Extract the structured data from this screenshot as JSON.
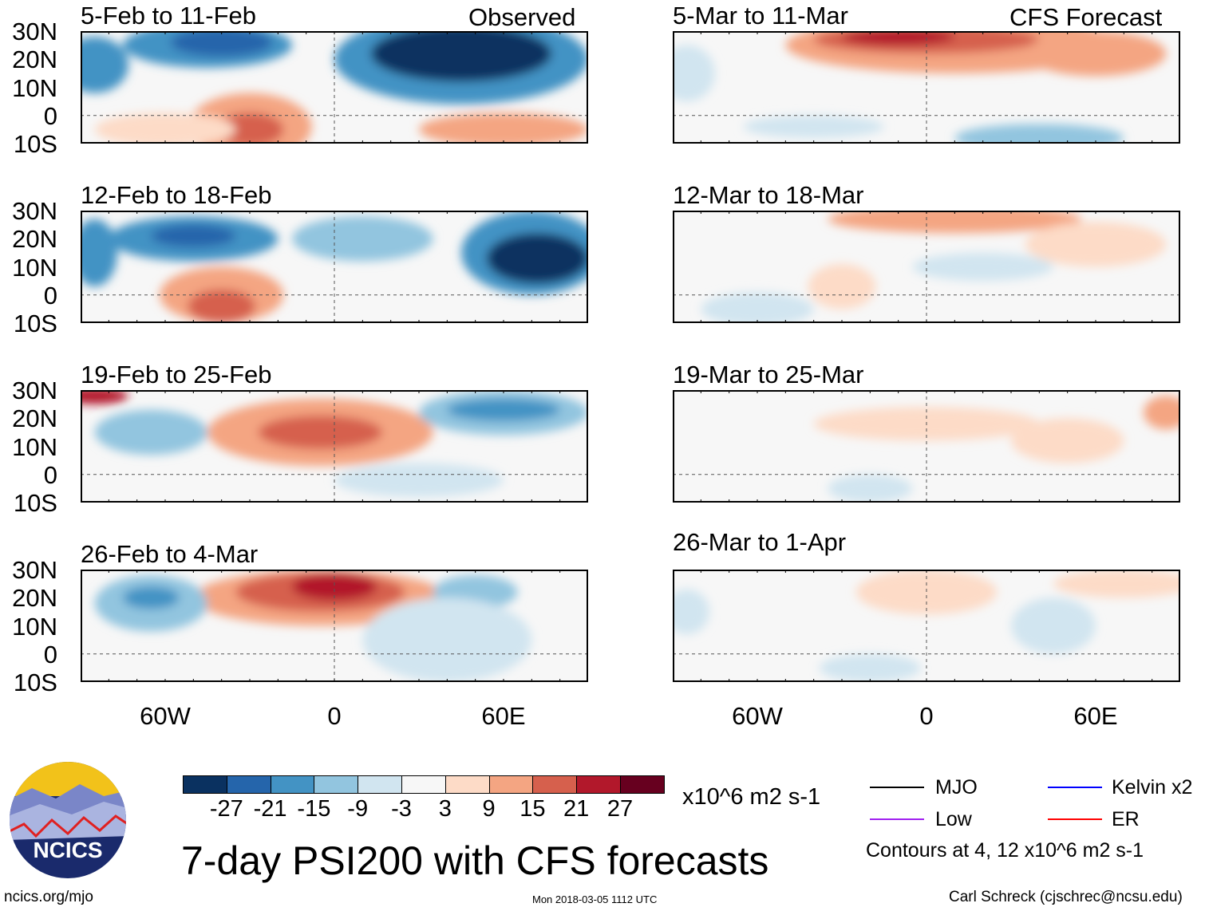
{
  "header": {
    "left_label": "Observed",
    "right_label": "CFS Forecast"
  },
  "lat_labels": [
    "30N",
    "20N",
    "10N",
    "0",
    "10S"
  ],
  "lon_labels": [
    "60W",
    "0",
    "60E"
  ],
  "panels": [
    {
      "title": "5-Feb to 11-Feb",
      "features": [
        {
          "lon": 45,
          "lat": 20,
          "rx": 45,
          "ry": 16,
          "level": 2
        },
        {
          "lon": 45,
          "lat": 22,
          "rx": 32,
          "ry": 10,
          "level": 0
        },
        {
          "lon": -45,
          "lat": 25,
          "rx": 30,
          "ry": 8,
          "level": 2
        },
        {
          "lon": -40,
          "lat": 26,
          "rx": 18,
          "ry": 5,
          "level": 1
        },
        {
          "lon": -85,
          "lat": 18,
          "rx": 12,
          "ry": 10,
          "level": 2
        },
        {
          "lon": -30,
          "lat": -4,
          "rx": 22,
          "ry": 12,
          "level": 7
        },
        {
          "lon": -30,
          "lat": -5,
          "rx": 12,
          "ry": 6,
          "level": 8
        },
        {
          "lon": 60,
          "lat": -5,
          "rx": 30,
          "ry": 6,
          "level": 7
        },
        {
          "lon": -60,
          "lat": -5,
          "rx": 25,
          "ry": 6,
          "level": 6
        }
      ]
    },
    {
      "title": "5-Mar to 11-Mar",
      "features": [
        {
          "lon": 10,
          "lat": 25,
          "rx": 60,
          "ry": 10,
          "level": 7
        },
        {
          "lon": 0,
          "lat": 27,
          "rx": 40,
          "ry": 5,
          "level": 8
        },
        {
          "lon": -10,
          "lat": 28,
          "rx": 20,
          "ry": 3,
          "level": 9
        },
        {
          "lon": 60,
          "lat": 22,
          "rx": 25,
          "ry": 8,
          "level": 7
        },
        {
          "lon": 40,
          "lat": -8,
          "rx": 30,
          "ry": 5,
          "level": 3
        },
        {
          "lon": -40,
          "lat": -4,
          "rx": 25,
          "ry": 4,
          "level": 4
        },
        {
          "lon": -85,
          "lat": 15,
          "rx": 10,
          "ry": 10,
          "level": 4
        }
      ]
    },
    {
      "title": "12-Feb to 18-Feb",
      "features": [
        {
          "lon": -50,
          "lat": 20,
          "rx": 30,
          "ry": 8,
          "level": 2
        },
        {
          "lon": -50,
          "lat": 21,
          "rx": 15,
          "ry": 4,
          "level": 1
        },
        {
          "lon": 70,
          "lat": 15,
          "rx": 25,
          "ry": 15,
          "level": 2
        },
        {
          "lon": 72,
          "lat": 13,
          "rx": 18,
          "ry": 9,
          "level": 0
        },
        {
          "lon": -40,
          "lat": 0,
          "rx": 22,
          "ry": 10,
          "level": 7
        },
        {
          "lon": -40,
          "lat": -4,
          "rx": 12,
          "ry": 6,
          "level": 8
        },
        {
          "lon": 10,
          "lat": 20,
          "rx": 25,
          "ry": 8,
          "level": 3
        },
        {
          "lon": -85,
          "lat": 15,
          "rx": 8,
          "ry": 12,
          "level": 2
        }
      ]
    },
    {
      "title": "12-Mar to 18-Mar",
      "features": [
        {
          "lon": 10,
          "lat": 27,
          "rx": 45,
          "ry": 5,
          "level": 7
        },
        {
          "lon": 60,
          "lat": 18,
          "rx": 25,
          "ry": 8,
          "level": 6
        },
        {
          "lon": -60,
          "lat": -5,
          "rx": 20,
          "ry": 6,
          "level": 4
        },
        {
          "lon": -30,
          "lat": 3,
          "rx": 12,
          "ry": 8,
          "level": 6
        },
        {
          "lon": 20,
          "lat": 10,
          "rx": 25,
          "ry": 5,
          "level": 4
        }
      ]
    },
    {
      "title": "19-Feb to 25-Feb",
      "features": [
        {
          "lon": -5,
          "lat": 15,
          "rx": 40,
          "ry": 12,
          "level": 7
        },
        {
          "lon": -5,
          "lat": 15,
          "rx": 22,
          "ry": 6,
          "level": 8
        },
        {
          "lon": 60,
          "lat": 22,
          "rx": 30,
          "ry": 8,
          "level": 3
        },
        {
          "lon": 60,
          "lat": 23,
          "rx": 20,
          "ry": 4,
          "level": 2
        },
        {
          "lon": -65,
          "lat": 15,
          "rx": 20,
          "ry": 8,
          "level": 3
        },
        {
          "lon": -85,
          "lat": 28,
          "rx": 12,
          "ry": 3,
          "level": 9
        },
        {
          "lon": 30,
          "lat": -2,
          "rx": 30,
          "ry": 6,
          "level": 4
        }
      ]
    },
    {
      "title": "19-Mar to 25-Mar",
      "features": [
        {
          "lon": 0,
          "lat": 18,
          "rx": 40,
          "ry": 6,
          "level": 6
        },
        {
          "lon": 50,
          "lat": 12,
          "rx": 20,
          "ry": 8,
          "level": 6
        },
        {
          "lon": -20,
          "lat": -5,
          "rx": 15,
          "ry": 5,
          "level": 4
        },
        {
          "lon": 85,
          "lat": 22,
          "rx": 8,
          "ry": 6,
          "level": 7
        }
      ]
    },
    {
      "title": "26-Feb to 4-Mar",
      "features": [
        {
          "lon": -5,
          "lat": 20,
          "rx": 45,
          "ry": 10,
          "level": 7
        },
        {
          "lon": -5,
          "lat": 22,
          "rx": 30,
          "ry": 7,
          "level": 8
        },
        {
          "lon": 0,
          "lat": 24,
          "rx": 15,
          "ry": 5,
          "level": 9
        },
        {
          "lon": -65,
          "lat": 18,
          "rx": 20,
          "ry": 10,
          "level": 3
        },
        {
          "lon": -65,
          "lat": 20,
          "rx": 10,
          "ry": 4,
          "level": 2
        },
        {
          "lon": 50,
          "lat": 22,
          "rx": 15,
          "ry": 6,
          "level": 3
        },
        {
          "lon": 40,
          "lat": 5,
          "rx": 30,
          "ry": 15,
          "level": 4
        }
      ]
    },
    {
      "title": "26-Mar to 1-Apr",
      "features": [
        {
          "lon": 0,
          "lat": 22,
          "rx": 25,
          "ry": 8,
          "level": 6
        },
        {
          "lon": 70,
          "lat": 25,
          "rx": 25,
          "ry": 5,
          "level": 6
        },
        {
          "lon": -20,
          "lat": -5,
          "rx": 18,
          "ry": 5,
          "level": 4
        },
        {
          "lon": 45,
          "lat": 10,
          "rx": 15,
          "ry": 10,
          "level": 4
        },
        {
          "lon": -85,
          "lat": 15,
          "rx": 8,
          "ry": 8,
          "level": 4
        }
      ]
    }
  ],
  "colorbar": {
    "colors": [
      "#0a3160",
      "#2565ab",
      "#4393c4",
      "#92c5df",
      "#d1e5f0",
      "#f7f7f7",
      "#fddbc7",
      "#f4a582",
      "#d6604d",
      "#b2182b",
      "#67001f"
    ],
    "labels": [
      "-27",
      "-21",
      "-15",
      "-9",
      "-3",
      "3",
      "9",
      "15",
      "21",
      "27"
    ],
    "units": "x10^6 m2 s-1"
  },
  "title": "7-day PSI200 with CFS forecasts",
  "legend": {
    "items": [
      {
        "label": "MJO",
        "color": "#000000"
      },
      {
        "label": "Kelvin x2",
        "color": "#0000ff"
      },
      {
        "label": "Low",
        "color": "#a020f0"
      },
      {
        "label": "ER",
        "color": "#ff0000"
      }
    ],
    "note": "Contours at 4, 12 x10^6 m2 s-1"
  },
  "logo": {
    "text": "NCICS"
  },
  "footer": {
    "url": "ncics.org/mjo",
    "timestamp": "Mon 2018-03-05 1112 UTC",
    "author": "Carl Schreck (cjschrec@ncsu.edu)"
  }
}
